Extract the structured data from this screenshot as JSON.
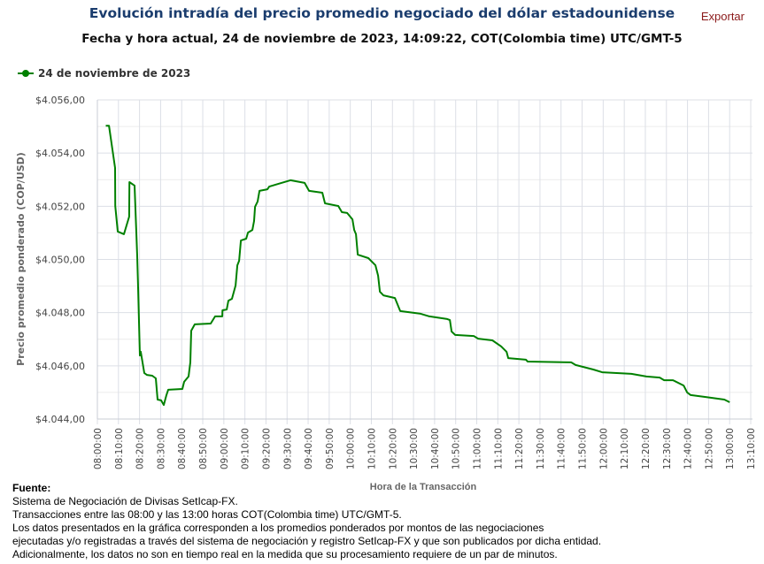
{
  "header": {
    "title": "Evolución intradía del precio promedio negociado del dólar estadounidense",
    "subtitle": "Fecha y hora actual, 24 de noviembre de 2023, 14:09:22, COT(Colombia time) UTC/GMT-5",
    "export_label": "Exportar"
  },
  "footer": {
    "heading": "Fuente:",
    "lines": [
      "Sistema de Negociación de Divisas SetIcap-FX.",
      "Transacciones entre las 08:00 y las 13:00 horas COT(Colombia time) UTC/GMT-5.",
      "Los datos presentados en la gráfica corresponden a los promedios ponderados por montos de las negociaciones",
      "ejecutadas y/o registradas a través del sistema de negociación y registro SetIcap-FX y que son publicados por dicha entidad.",
      "Adicionalmente, los datos no son en tiempo real en la medida que su procesamiento requiere de un par de minutos."
    ]
  },
  "chart_data": {
    "type": "line",
    "xlabel": "Hora de la Transacción",
    "ylabel": "Precio promedio ponderado (COP/USD)",
    "xlim": [
      "08:00:00",
      "13:10:00"
    ],
    "ylim": [
      4044,
      4056
    ],
    "grid": true,
    "legend_position": "top-left",
    "x_ticks": [
      "08:00:00",
      "08:10:00",
      "08:20:00",
      "08:30:00",
      "08:40:00",
      "08:50:00",
      "09:00:00",
      "09:10:00",
      "09:20:00",
      "09:30:00",
      "09:40:00",
      "09:50:00",
      "10:00:00",
      "10:10:00",
      "10:20:00",
      "10:30:00",
      "10:40:00",
      "10:50:00",
      "11:00:00",
      "11:10:00",
      "11:20:00",
      "11:30:00",
      "11:40:00",
      "11:50:00",
      "12:00:00",
      "12:10:00",
      "12:20:00",
      "12:30:00",
      "12:40:00",
      "12:50:00",
      "13:00:00",
      "13:10:00"
    ],
    "y_ticks": [
      {
        "value": 4044,
        "label": "$4.044,00"
      },
      {
        "value": 4046,
        "label": "$4.046,00"
      },
      {
        "value": 4048,
        "label": "$4.048,00"
      },
      {
        "value": 4050,
        "label": "$4.050,00"
      },
      {
        "value": 4052,
        "label": "$4.052,00"
      },
      {
        "value": 4054,
        "label": "$4.054,00"
      },
      {
        "value": 4056,
        "label": "$4.056,00"
      }
    ],
    "series": [
      {
        "name": "24 de noviembre de 2023",
        "color": "#008000",
        "x": [
          "08:04:00",
          "08:05:30",
          "08:08:24",
          "08:08:30",
          "08:09:40",
          "08:12:36",
          "08:15:06",
          "08:15:12",
          "08:17:39",
          "08:18:54",
          "08:19:20",
          "08:20:10",
          "08:20:35",
          "08:21:25",
          "08:22:16",
          "08:23:30",
          "08:26:03",
          "08:27:44",
          "08:28:34",
          "08:30:15",
          "08:31:30",
          "08:32:46",
          "08:33:36",
          "08:40:20",
          "08:41:11",
          "08:43:16",
          "08:44:07",
          "08:44:32",
          "08:46:13",
          "08:53:47",
          "08:55:53",
          "08:59:15",
          "08:59:20",
          "09:01:21",
          "09:02:11",
          "09:03:52",
          "09:05:33",
          "09:06:24",
          "09:07:14",
          "09:08:05",
          "09:10:36",
          "09:11:26",
          "09:13:32",
          "09:14:22",
          "09:14:48",
          "09:16:03",
          "09:16:54",
          "09:20:41",
          "09:21:31",
          "09:25:43",
          "09:31:36",
          "09:38:20",
          "09:40:26",
          "09:46:44",
          "09:48:00",
          "09:54:18",
          "09:56:00",
          "09:58:30",
          "10:01:01",
          "10:01:52",
          "10:02:42",
          "10:03:32",
          "10:08:35",
          "10:11:56",
          "10:13:12",
          "10:14:03",
          "10:15:44",
          "10:21:11",
          "10:23:42",
          "10:33:22",
          "10:37:34",
          "10:46:00",
          "10:47:15",
          "10:48:05",
          "10:49:46",
          "10:58:36",
          "11:00:41",
          "11:07:25",
          "11:11:37",
          "11:14:08",
          "11:14:58",
          "11:23:22",
          "11:24:12",
          "11:44:49",
          "11:46:55",
          "11:55:19",
          "11:59:31",
          "12:13:23",
          "12:20:31",
          "12:26:50",
          "12:28:56",
          "12:33:08",
          "12:38:10",
          "12:39:50",
          "12:41:32",
          "12:48:16",
          "12:57:30",
          "13:00:00"
        ],
        "values": [
          4055.03,
          4055.03,
          4053.44,
          4052.01,
          4051.05,
          4050.95,
          4051.61,
          4052.91,
          4052.78,
          4050.12,
          4048.95,
          4046.39,
          4046.53,
          4046.13,
          4045.73,
          4045.66,
          4045.63,
          4045.53,
          4044.73,
          4044.7,
          4044.53,
          4044.9,
          4045.1,
          4045.13,
          4045.4,
          4045.6,
          4046.13,
          4047.32,
          4047.56,
          4047.59,
          4047.86,
          4047.86,
          4048.09,
          4048.12,
          4048.45,
          4048.52,
          4049.02,
          4049.78,
          4049.95,
          4050.71,
          4050.78,
          4051.01,
          4051.11,
          4051.45,
          4051.98,
          4052.18,
          4052.58,
          4052.64,
          4052.74,
          4052.84,
          4052.98,
          4052.88,
          4052.58,
          4052.51,
          4052.11,
          4052.01,
          4051.78,
          4051.75,
          4051.51,
          4051.11,
          4050.95,
          4050.18,
          4050.05,
          4049.78,
          4049.39,
          4048.79,
          4048.65,
          4048.55,
          4048.06,
          4047.96,
          4047.86,
          4047.76,
          4047.72,
          4047.29,
          4047.16,
          4047.12,
          4047.02,
          4046.96,
          4046.73,
          4046.53,
          4046.29,
          4046.23,
          4046.16,
          4046.13,
          4046.03,
          4045.86,
          4045.76,
          4045.7,
          4045.6,
          4045.56,
          4045.46,
          4045.46,
          4045.26,
          4045.0,
          4044.9,
          4044.83,
          4044.73,
          4044.63
        ]
      }
    ]
  }
}
